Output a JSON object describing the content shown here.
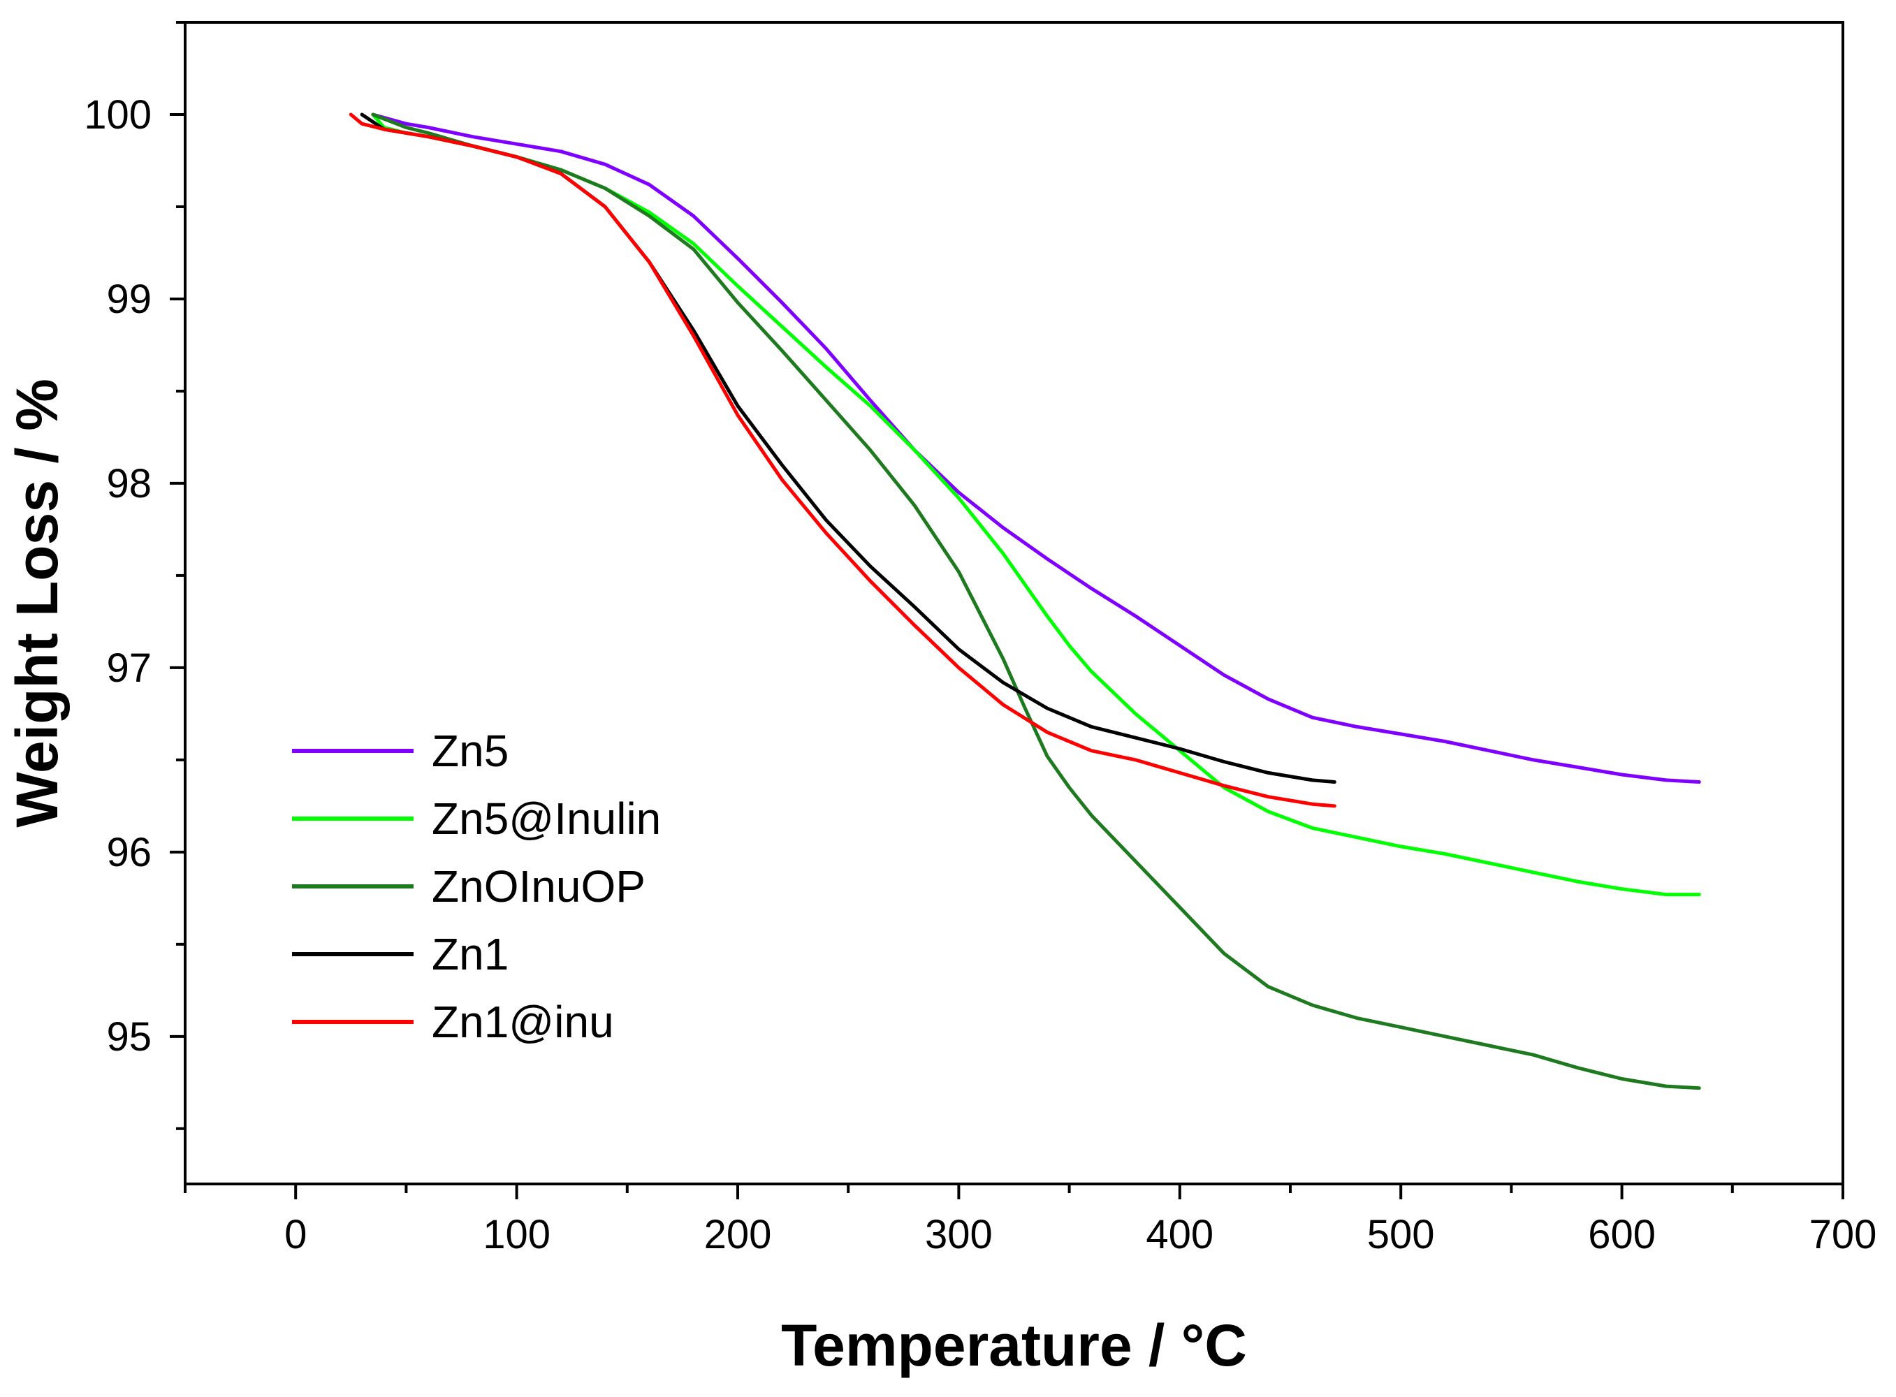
{
  "chart_data": {
    "type": "line",
    "title": "",
    "xlabel": "Temperature / °C",
    "ylabel": "Weight Loss / %",
    "xlim": [
      -50,
      700
    ],
    "ylim": [
      94.2,
      100.5
    ],
    "xticks": [
      0,
      100,
      200,
      300,
      400,
      500,
      600,
      700
    ],
    "xtick_labels": [
      "0",
      "100",
      "200",
      "300",
      "400",
      "500",
      "600",
      "700"
    ],
    "yticks": [
      95,
      96,
      97,
      98,
      99,
      100
    ],
    "ytick_labels": [
      "95",
      "96",
      "97",
      "98",
      "99",
      "100"
    ],
    "grid": false,
    "legend_position": "lower-left",
    "series": [
      {
        "name": "Zn5",
        "color": "#8000ff",
        "x": [
          35,
          50,
          60,
          80,
          100,
          120,
          140,
          160,
          180,
          200,
          220,
          240,
          260,
          280,
          300,
          320,
          340,
          360,
          380,
          400,
          420,
          440,
          460,
          480,
          500,
          520,
          540,
          560,
          580,
          600,
          620,
          635
        ],
        "y": [
          100.0,
          99.95,
          99.93,
          99.88,
          99.84,
          99.8,
          99.73,
          99.62,
          99.45,
          99.22,
          98.98,
          98.73,
          98.45,
          98.18,
          97.95,
          97.76,
          97.59,
          97.43,
          97.28,
          97.12,
          96.96,
          96.83,
          96.73,
          96.68,
          96.64,
          96.6,
          96.55,
          96.5,
          96.46,
          96.42,
          96.39,
          96.38
        ]
      },
      {
        "name": "Zn5@Inulin",
        "color": "#00ff00",
        "x": [
          35,
          40,
          50,
          60,
          80,
          100,
          120,
          140,
          160,
          180,
          200,
          220,
          240,
          260,
          280,
          300,
          320,
          330,
          340,
          350,
          360,
          380,
          400,
          420,
          440,
          460,
          480,
          500,
          520,
          540,
          560,
          580,
          600,
          620,
          635
        ],
        "y": [
          100.0,
          99.93,
          99.9,
          99.88,
          99.83,
          99.77,
          99.7,
          99.6,
          99.47,
          99.3,
          99.07,
          98.85,
          98.63,
          98.42,
          98.18,
          97.92,
          97.62,
          97.45,
          97.28,
          97.12,
          96.98,
          96.75,
          96.55,
          96.35,
          96.22,
          96.13,
          96.08,
          96.03,
          95.99,
          95.94,
          95.89,
          95.84,
          95.8,
          95.77,
          95.77
        ]
      },
      {
        "name": "ZnOInuOP",
        "color": "#1e7a1e",
        "x": [
          35,
          50,
          60,
          80,
          100,
          120,
          140,
          160,
          180,
          200,
          220,
          240,
          260,
          280,
          300,
          320,
          330,
          340,
          350,
          360,
          380,
          400,
          420,
          440,
          460,
          480,
          500,
          520,
          540,
          560,
          580,
          600,
          620,
          635
        ],
        "y": [
          100.0,
          99.93,
          99.9,
          99.83,
          99.77,
          99.7,
          99.6,
          99.45,
          99.27,
          98.98,
          98.72,
          98.45,
          98.18,
          97.88,
          97.52,
          97.05,
          96.78,
          96.52,
          96.35,
          96.2,
          95.95,
          95.7,
          95.45,
          95.27,
          95.17,
          95.1,
          95.05,
          95.0,
          94.95,
          94.9,
          94.83,
          94.77,
          94.73,
          94.72
        ]
      },
      {
        "name": "Zn1",
        "color": "#000000",
        "x": [
          30,
          40,
          60,
          80,
          100,
          120,
          140,
          160,
          180,
          200,
          220,
          240,
          260,
          280,
          300,
          320,
          340,
          360,
          380,
          400,
          420,
          440,
          460,
          470
        ],
        "y": [
          100.0,
          99.92,
          99.88,
          99.83,
          99.77,
          99.68,
          99.5,
          99.2,
          98.83,
          98.42,
          98.1,
          97.8,
          97.55,
          97.33,
          97.1,
          96.92,
          96.78,
          96.68,
          96.62,
          96.56,
          96.49,
          96.43,
          96.39,
          96.38
        ]
      },
      {
        "name": "Zn1@inu",
        "color": "#ff0000",
        "x": [
          25,
          30,
          40,
          60,
          80,
          100,
          120,
          140,
          160,
          180,
          200,
          220,
          240,
          260,
          280,
          300,
          320,
          340,
          360,
          380,
          400,
          420,
          440,
          460,
          470
        ],
        "y": [
          100.0,
          99.95,
          99.92,
          99.88,
          99.83,
          99.77,
          99.68,
          99.5,
          99.2,
          98.8,
          98.37,
          98.02,
          97.73,
          97.47,
          97.23,
          97.0,
          96.8,
          96.65,
          96.55,
          96.5,
          96.43,
          96.36,
          96.3,
          96.26,
          96.25
        ]
      }
    ]
  }
}
